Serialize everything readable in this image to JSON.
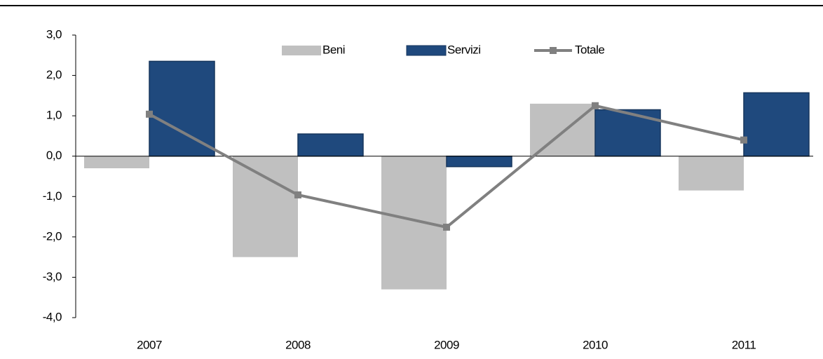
{
  "chart_data": {
    "type": "bar-line",
    "categories": [
      "2007",
      "2008",
      "2009",
      "2010",
      "2011"
    ],
    "series": [
      {
        "name": "Beni",
        "type": "bar",
        "color": "#c0c0c0",
        "values": [
          -0.3,
          -2.5,
          -3.3,
          1.3,
          -0.85
        ]
      },
      {
        "name": "Servizi",
        "type": "bar",
        "color": "#1f497d",
        "values": [
          2.35,
          0.55,
          -0.26,
          1.15,
          1.57
        ]
      },
      {
        "name": "Totale",
        "type": "line",
        "color": "#808080",
        "values": [
          1.04,
          -0.96,
          -1.76,
          1.25,
          0.4
        ]
      }
    ],
    "ylim": [
      -4,
      3
    ],
    "yticks": [
      {
        "value": 3,
        "label": "3,0"
      },
      {
        "value": 2,
        "label": "2,0"
      },
      {
        "value": 1,
        "label": "1,0"
      },
      {
        "value": 0,
        "label": "0,0"
      },
      {
        "value": -1,
        "label": "-1,0"
      },
      {
        "value": -2,
        "label": "-2,0"
      },
      {
        "value": -3,
        "label": "-3,0"
      },
      {
        "value": -4,
        "label": "-4,0"
      }
    ]
  }
}
